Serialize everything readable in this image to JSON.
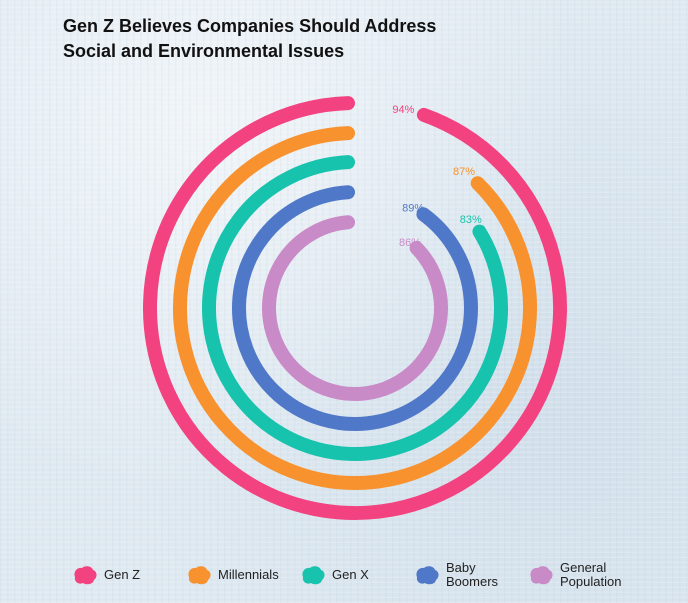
{
  "chart_data": {
    "type": "radial-bar",
    "title_lines": [
      "Gen Z Believes Companies Should Address",
      "Social and Environmental Issues"
    ],
    "value_suffix": "%",
    "max_value": 100,
    "series": [
      {
        "name": "Gen Z",
        "legend_lines": [
          "Gen Z"
        ],
        "value": 94,
        "label": "94%",
        "color": "#f2427f"
      },
      {
        "name": "Millennials",
        "legend_lines": [
          "Millennials"
        ],
        "value": 87,
        "label": "87%",
        "color": "#f7922e"
      },
      {
        "name": "Gen X",
        "legend_lines": [
          "Gen X"
        ],
        "value": 83,
        "label": "83%",
        "color": "#17c3ad"
      },
      {
        "name": "Baby Boomers",
        "legend_lines": [
          "Baby",
          "Boomers"
        ],
        "value": 89,
        "label": "89%",
        "color": "#4f78c8"
      },
      {
        "name": "General Population",
        "legend_lines": [
          "General",
          "Population"
        ],
        "value": 86,
        "label": "86%",
        "color": "#c98ac8"
      }
    ],
    "legend_position": "bottom"
  }
}
